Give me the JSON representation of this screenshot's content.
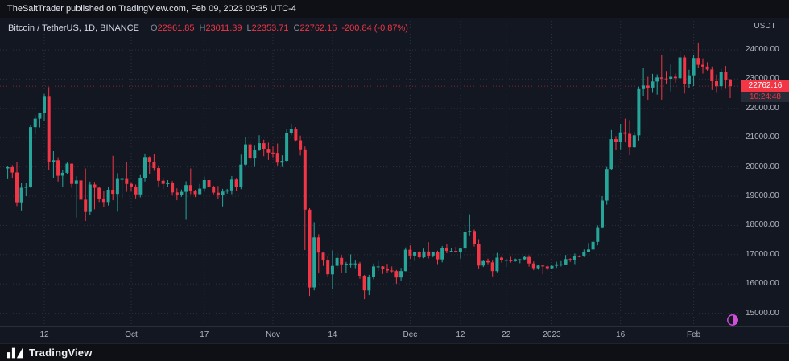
{
  "top_bar": {
    "text": "TheSaltTrader published on TradingView.com, Feb 09, 2023 09:35 UTC-4"
  },
  "legend": {
    "symbol": "Bitcoin / TetherUS, 1D, BINANCE",
    "ohlc": [
      {
        "label": "O",
        "value": "22961.85"
      },
      {
        "label": "H",
        "value": "23011.39"
      },
      {
        "label": "L",
        "value": "22353.71"
      },
      {
        "label": "C",
        "value": "22762.16"
      }
    ],
    "change": "-200.84 (-0.87%)"
  },
  "price_axis": {
    "currency": "USDT",
    "last_price": "22762.16",
    "countdown": "10:24:48"
  },
  "footer": {
    "brand": "TradingView",
    "logo_icon": "tradingview-logo"
  },
  "colors": {
    "background": "#131722",
    "up": "#26a69a",
    "down": "#f23645",
    "last_price_badge": "#f23645",
    "countdown_text": "#f23645",
    "grid": "#323847",
    "axis_text": "#b2b5be",
    "moon_icon": "#cf4fd8"
  },
  "chart_data": {
    "type": "candlestick",
    "title": "Bitcoin / TetherUS",
    "exchange": "BINANCE",
    "interval": "1D",
    "quote_currency": "USDT",
    "ylim": [
      14550,
      25100
    ],
    "grid": "dotted",
    "price_ticks": [
      24000,
      23000,
      22000,
      21000,
      20000,
      19000,
      18000,
      17000,
      16000,
      15000
    ],
    "time_ticks": [
      {
        "i": 8,
        "label": "12"
      },
      {
        "i": 27,
        "label": "Oct"
      },
      {
        "i": 43,
        "label": "17"
      },
      {
        "i": 58,
        "label": "Nov"
      },
      {
        "i": 71,
        "label": "14"
      },
      {
        "i": 88,
        "label": "Dec"
      },
      {
        "i": 99,
        "label": "12"
      },
      {
        "i": 109,
        "label": "22"
      },
      {
        "i": 119,
        "label": "2023"
      },
      {
        "i": 134,
        "label": "16"
      },
      {
        "i": 150,
        "label": "Feb"
      }
    ],
    "last_bar": {
      "o": 22961.85,
      "h": 23011.39,
      "l": 22353.71,
      "c": 22762.16,
      "change": -200.84,
      "change_pct": -0.87
    },
    "candles": [
      [
        19950,
        20030,
        19580,
        19990
      ],
      [
        19990,
        20060,
        19630,
        19810
      ],
      [
        19810,
        20180,
        18660,
        18790
      ],
      [
        18790,
        19460,
        18510,
        19290
      ],
      [
        19290,
        19450,
        19000,
        19320
      ],
      [
        19320,
        21430,
        19290,
        21360
      ],
      [
        21360,
        21770,
        21110,
        21650
      ],
      [
        21650,
        21860,
        21350,
        21830
      ],
      [
        21830,
        22500,
        21560,
        22400
      ],
      [
        22400,
        22730,
        19900,
        20170
      ],
      [
        20170,
        20540,
        19620,
        20230
      ],
      [
        20230,
        20330,
        19500,
        19700
      ],
      [
        19700,
        19890,
        19330,
        19800
      ],
      [
        19800,
        20180,
        19750,
        20110
      ],
      [
        20110,
        20120,
        19290,
        19420
      ],
      [
        19420,
        19690,
        18270,
        19540
      ],
      [
        19540,
        19630,
        18740,
        18880
      ],
      [
        18880,
        19950,
        18150,
        18460
      ],
      [
        18460,
        19500,
        18360,
        19400
      ],
      [
        19400,
        19490,
        18550,
        19290
      ],
      [
        19290,
        19310,
        18800,
        18920
      ],
      [
        18920,
        19180,
        18640,
        18800
      ],
      [
        18800,
        19320,
        18680,
        19220
      ],
      [
        19220,
        20380,
        18860,
        19080
      ],
      [
        19080,
        19790,
        18470,
        19590
      ],
      [
        19590,
        19640,
        18920,
        19590
      ],
      [
        19590,
        20170,
        19150,
        19420
      ],
      [
        19420,
        19480,
        19160,
        19310
      ],
      [
        19310,
        19400,
        18920,
        19060
      ],
      [
        19060,
        19720,
        18960,
        19630
      ],
      [
        19630,
        20460,
        19500,
        20340
      ],
      [
        20340,
        20360,
        19750,
        20160
      ],
      [
        20160,
        20440,
        19870,
        19960
      ],
      [
        19960,
        20050,
        19320,
        19530
      ],
      [
        19530,
        19630,
        19240,
        19420
      ],
      [
        19420,
        19550,
        19320,
        19440
      ],
      [
        19440,
        19520,
        19020,
        19130
      ],
      [
        19130,
        19270,
        18860,
        19050
      ],
      [
        19050,
        19230,
        18980,
        19150
      ],
      [
        19150,
        19510,
        18190,
        19380
      ],
      [
        19380,
        19950,
        19070,
        19180
      ],
      [
        19180,
        19220,
        18970,
        19070
      ],
      [
        19070,
        19420,
        19060,
        19260
      ],
      [
        19260,
        19670,
        19160,
        19550
      ],
      [
        19550,
        19710,
        19100,
        19330
      ],
      [
        19330,
        19360,
        19060,
        19120
      ],
      [
        19120,
        19350,
        18900,
        19040
      ],
      [
        19040,
        19250,
        18650,
        19160
      ],
      [
        19160,
        19250,
        19090,
        19200
      ],
      [
        19200,
        19690,
        19070,
        19570
      ],
      [
        19570,
        19600,
        19190,
        19330
      ],
      [
        19330,
        20420,
        19240,
        20080
      ],
      [
        20080,
        21020,
        20050,
        20770
      ],
      [
        20770,
        20880,
        20190,
        20290
      ],
      [
        20290,
        20750,
        20000,
        20590
      ],
      [
        20590,
        21080,
        20550,
        20810
      ],
      [
        20810,
        20930,
        20370,
        20620
      ],
      [
        20620,
        20830,
        20240,
        20490
      ],
      [
        20490,
        20700,
        20330,
        20480
      ],
      [
        20480,
        20800,
        20050,
        20150
      ],
      [
        20150,
        20400,
        20000,
        20210
      ],
      [
        20210,
        21300,
        20180,
        21150
      ],
      [
        21150,
        21480,
        21080,
        21300
      ],
      [
        21300,
        21360,
        20890,
        20910
      ],
      [
        20910,
        21070,
        20390,
        20600
      ],
      [
        20600,
        20700,
        17160,
        18540
      ],
      [
        18540,
        18590,
        15590,
        15880
      ],
      [
        15880,
        18110,
        15780,
        17590
      ],
      [
        17590,
        17700,
        16360,
        17070
      ],
      [
        17070,
        17100,
        16620,
        16800
      ],
      [
        16800,
        16960,
        16230,
        16330
      ],
      [
        16330,
        17150,
        15810,
        16620
      ],
      [
        16620,
        17110,
        16540,
        16890
      ],
      [
        16890,
        16990,
        16380,
        16670
      ],
      [
        16670,
        16750,
        16390,
        16690
      ],
      [
        16690,
        17010,
        16560,
        16700
      ],
      [
        16700,
        16800,
        16540,
        16700
      ],
      [
        16700,
        16750,
        16180,
        16280
      ],
      [
        16280,
        16310,
        15480,
        15780
      ],
      [
        15780,
        16310,
        15620,
        16230
      ],
      [
        16230,
        16700,
        16160,
        16600
      ],
      [
        16600,
        16790,
        16450,
        16600
      ],
      [
        16600,
        16610,
        16340,
        16520
      ],
      [
        16520,
        16690,
        16380,
        16460
      ],
      [
        16460,
        16600,
        16400,
        16440
      ],
      [
        16440,
        16480,
        16010,
        16220
      ],
      [
        16220,
        16550,
        16100,
        16440
      ],
      [
        16440,
        17250,
        16430,
        17170
      ],
      [
        17170,
        17320,
        16860,
        16970
      ],
      [
        16970,
        17110,
        16790,
        17090
      ],
      [
        17090,
        17120,
        16860,
        16910
      ],
      [
        16910,
        17210,
        16880,
        17110
      ],
      [
        17110,
        17430,
        16870,
        16970
      ],
      [
        16970,
        17110,
        16910,
        17090
      ],
      [
        17090,
        17140,
        16680,
        16840
      ],
      [
        16840,
        17300,
        16740,
        17230
      ],
      [
        17230,
        17360,
        17050,
        17130
      ],
      [
        17130,
        17230,
        17100,
        17130
      ],
      [
        17130,
        17270,
        17070,
        17090
      ],
      [
        17090,
        17240,
        16870,
        17210
      ],
      [
        17210,
        18000,
        17080,
        17780
      ],
      [
        17780,
        18380,
        17660,
        17810
      ],
      [
        17810,
        17860,
        17280,
        17360
      ],
      [
        17360,
        17530,
        16530,
        16630
      ],
      [
        16630,
        16800,
        16580,
        16780
      ],
      [
        16780,
        16870,
        16670,
        16740
      ],
      [
        16740,
        16820,
        16260,
        16440
      ],
      [
        16440,
        17060,
        16400,
        16900
      ],
      [
        16900,
        16930,
        16730,
        16820
      ],
      [
        16820,
        16870,
        16580,
        16820
      ],
      [
        16820,
        16930,
        16730,
        16780
      ],
      [
        16780,
        16870,
        16760,
        16840
      ],
      [
        16840,
        16860,
        16710,
        16840
      ],
      [
        16840,
        16940,
        16800,
        16920
      ],
      [
        16920,
        16980,
        16590,
        16700
      ],
      [
        16700,
        16770,
        16470,
        16540
      ],
      [
        16540,
        16650,
        16490,
        16630
      ],
      [
        16630,
        16650,
        16330,
        16600
      ],
      [
        16600,
        16630,
        16470,
        16540
      ],
      [
        16540,
        16630,
        16500,
        16620
      ],
      [
        16620,
        16760,
        16550,
        16670
      ],
      [
        16670,
        16780,
        16600,
        16670
      ],
      [
        16670,
        16990,
        16650,
        16850
      ],
      [
        16850,
        16880,
        16750,
        16830
      ],
      [
        16830,
        17040,
        16680,
        16950
      ],
      [
        16950,
        16980,
        16910,
        16940
      ],
      [
        16940,
        17180,
        16920,
        17090
      ],
      [
        17090,
        17400,
        17090,
        17180
      ],
      [
        17180,
        17500,
        17150,
        17440
      ],
      [
        17440,
        18000,
        17320,
        17940
      ],
      [
        17940,
        19000,
        17900,
        18850
      ],
      [
        18850,
        20000,
        18710,
        19930
      ],
      [
        19930,
        21260,
        19890,
        20950
      ],
      [
        20950,
        21050,
        20570,
        20870
      ],
      [
        20870,
        21470,
        20600,
        21180
      ],
      [
        21180,
        21650,
        20840,
        21130
      ],
      [
        21130,
        21600,
        20400,
        20670
      ],
      [
        20670,
        21190,
        20660,
        21080
      ],
      [
        21080,
        22750,
        20900,
        22660
      ],
      [
        22660,
        23370,
        22420,
        22780
      ],
      [
        22780,
        23080,
        22300,
        22710
      ],
      [
        22710,
        23180,
        22530,
        22920
      ],
      [
        22920,
        23160,
        22470,
        23060
      ],
      [
        23060,
        23820,
        22300,
        23020
      ],
      [
        23020,
        23280,
        22850,
        23010
      ],
      [
        23010,
        23500,
        22580,
        23080
      ],
      [
        23080,
        23190,
        22880,
        23030
      ],
      [
        23030,
        23960,
        22970,
        23740
      ],
      [
        23740,
        23800,
        22510,
        22830
      ],
      [
        22830,
        23320,
        22710,
        23130
      ],
      [
        23130,
        23810,
        22760,
        23720
      ],
      [
        23720,
        24250,
        23370,
        23490
      ],
      [
        23490,
        23710,
        23190,
        23430
      ],
      [
        23430,
        23580,
        23290,
        23330
      ],
      [
        23330,
        23430,
        22630,
        22930
      ],
      [
        22930,
        23160,
        22530,
        22760
      ],
      [
        22760,
        23350,
        22630,
        23240
      ],
      [
        23240,
        23450,
        22670,
        22960
      ],
      [
        22961.85,
        23011.39,
        22353.71,
        22762.16
      ]
    ]
  }
}
